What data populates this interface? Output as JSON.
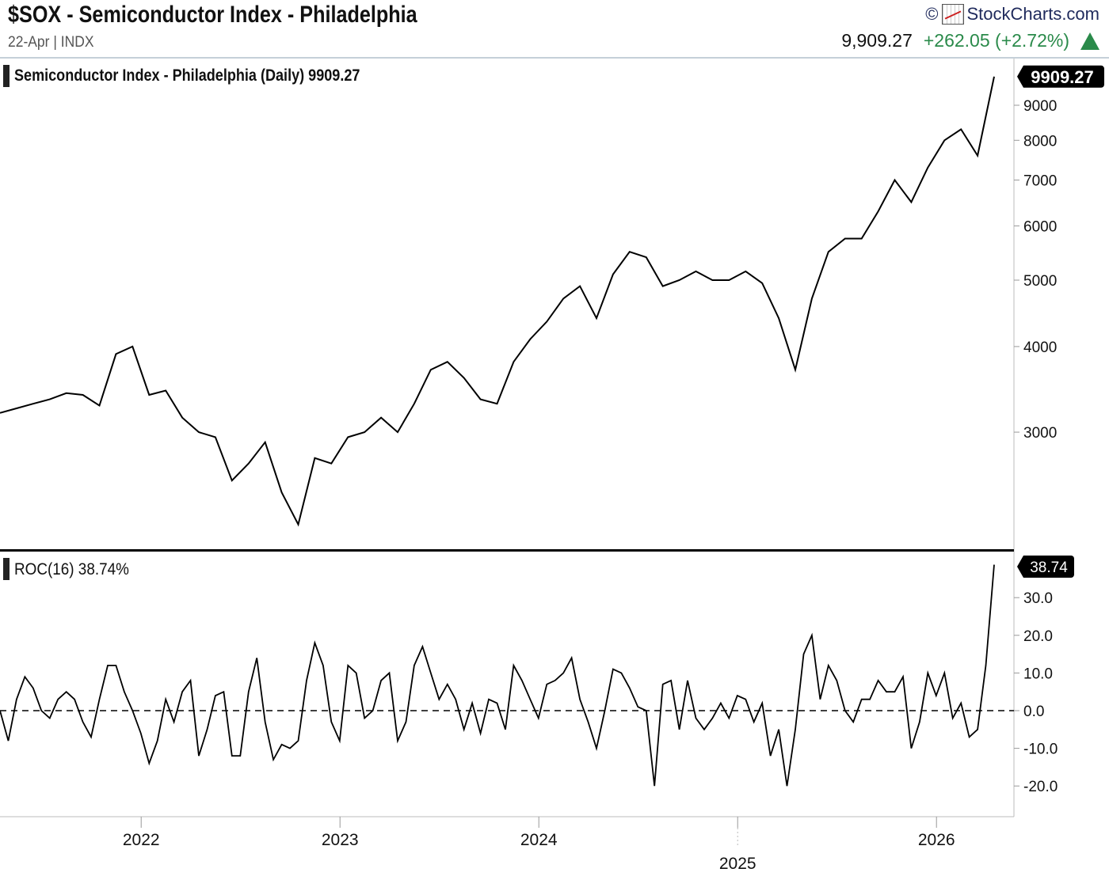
{
  "header": {
    "title": "$SOX - Semiconductor Index - Philadelphia",
    "subtitle": "22-Apr | INDX",
    "logo_text": "StockCharts.com",
    "copyright": "©",
    "last": "9,909.27",
    "change": "+262.05 (+2.72%)",
    "direction": "up"
  },
  "colors": {
    "up": "#2a8a4a",
    "line": "#000000",
    "grid_sep": "#c5d0d8"
  },
  "chart_data": [
    {
      "type": "line",
      "title": "Semiconductor Index - Philadelphia (Daily) 9909.27",
      "scale": "log",
      "x_start": "2021-04",
      "x_interval": "month",
      "values": [
        3200,
        3250,
        3300,
        3350,
        3420,
        3400,
        3280,
        3900,
        4000,
        3400,
        3450,
        3150,
        3000,
        2950,
        2550,
        2700,
        2900,
        2450,
        2200,
        2750,
        2700,
        2950,
        3000,
        3150,
        3000,
        3300,
        3700,
        3800,
        3600,
        3350,
        3300,
        3800,
        4100,
        4350,
        4700,
        4900,
        4400,
        5100,
        5500,
        5400,
        4900,
        5000,
        5150,
        5000,
        5000,
        5150,
        4950,
        4400,
        3700,
        4700,
        5500,
        5750,
        5750,
        6300,
        7000,
        6500,
        7300,
        8000,
        8300,
        7600,
        9909.27
      ],
      "last_value_label": "9909.27",
      "yticks": [
        3000,
        4000,
        5000,
        6000,
        7000,
        8000,
        9000
      ],
      "ytick_labels": [
        "3000",
        "4000",
        "5000",
        "6000",
        "7000",
        "8000",
        "9000"
      ],
      "ylim": [
        2100,
        10200
      ]
    },
    {
      "type": "line",
      "title": "ROC(16) 38.74%",
      "x_start": "2021-04",
      "x_interval": "half-month",
      "values": [
        0,
        -8,
        3,
        9,
        6,
        0,
        -2,
        3,
        5,
        3,
        -3,
        -7,
        3,
        12,
        12,
        5,
        0,
        -6,
        -14,
        -8,
        3,
        -3,
        5,
        8,
        -12,
        -5,
        4,
        5,
        -12,
        -12,
        5,
        14,
        -3,
        -13,
        -9,
        -10,
        -8,
        8,
        18,
        12,
        -3,
        -8,
        12,
        10,
        -2,
        0,
        8,
        10,
        -8,
        -3,
        12,
        17,
        10,
        3,
        7,
        3,
        -5,
        2,
        -6,
        3,
        2,
        -5,
        12,
        8,
        3,
        -2,
        7,
        8,
        10,
        14,
        3,
        -3,
        -10,
        0,
        11,
        10,
        6,
        1,
        0,
        -20,
        7,
        8,
        -5,
        8,
        -2,
        -5,
        -2,
        2,
        -2,
        4,
        3,
        -3,
        2,
        -12,
        -5,
        -20,
        -5,
        15,
        20,
        3,
        12,
        8,
        0,
        -3,
        3,
        3,
        8,
        5,
        5,
        9,
        -10,
        -3,
        10,
        4,
        10,
        -2,
        2,
        -7,
        -5,
        12,
        38.74
      ],
      "last_value_label": "38.74",
      "yticks": [
        -20,
        -10,
        0,
        10,
        20,
        30
      ],
      "ytick_labels": [
        "-20.0",
        "-10.0",
        "0.0",
        "10.0",
        "20.0",
        "30.0"
      ],
      "reference_line": 0,
      "ylim": [
        -28,
        42
      ]
    }
  ],
  "x_axis": {
    "ticks": [
      "2022",
      "2023",
      "2024",
      "2025",
      "2026"
    ],
    "tick_years": [
      2022,
      2023,
      2024,
      2025,
      2026
    ]
  }
}
